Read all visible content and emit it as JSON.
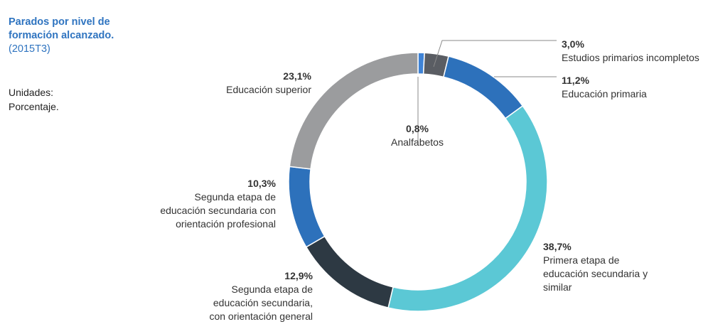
{
  "title": {
    "line1": "Parados por nivel de",
    "line2": "formación alcanzado.",
    "period": "(2015T3)"
  },
  "units": {
    "label": "Unidades:",
    "value": "Porcentaje."
  },
  "colors": {
    "title": "#2f74c0",
    "leader": "#8a8a8a"
  },
  "chart_data": {
    "type": "pie",
    "variant": "donut",
    "unit": "%",
    "slices": [
      {
        "label_lines": [
          "Analfabetos"
        ],
        "value": 0.8,
        "value_label": "0,8%",
        "color": "#3f83d6"
      },
      {
        "label_lines": [
          "Estudios primarios incompletos"
        ],
        "value": 3.0,
        "value_label": "3,0%",
        "color": "#5a5d63"
      },
      {
        "label_lines": [
          "Educación primaria"
        ],
        "value": 11.2,
        "value_label": "11,2%",
        "color": "#2d71bb"
      },
      {
        "label_lines": [
          "Primera etapa de",
          "educación secundaria y",
          "similar"
        ],
        "value": 38.7,
        "value_label": "38,7%",
        "color": "#5bc8d5"
      },
      {
        "label_lines": [
          "Segunda etapa de",
          "educación secundaria,",
          "con orientación general"
        ],
        "value": 12.9,
        "value_label": "12,9%",
        "color": "#2d3943"
      },
      {
        "label_lines": [
          "Segunda etapa de",
          "educación secundaria con",
          "orientación profesional"
        ],
        "value": 10.3,
        "value_label": "10,3%",
        "color": "#2d71bb"
      },
      {
        "label_lines": [
          "Educación superior"
        ],
        "value": 23.1,
        "value_label": "23,1%",
        "color": "#9b9c9e"
      }
    ]
  }
}
